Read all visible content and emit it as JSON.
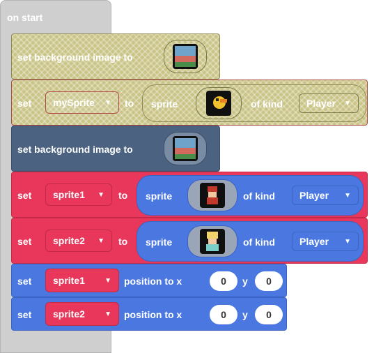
{
  "hat": {
    "label": "on start"
  },
  "block1": {
    "prefix": "set background image to"
  },
  "block2": {
    "set": "set",
    "variable": "mySprite",
    "to": "to",
    "sprite": "sprite",
    "of_kind": "of kind",
    "kind": "Player"
  },
  "block3": {
    "prefix": "set background image to"
  },
  "block4": {
    "set": "set",
    "variable": "sprite1",
    "to": "to",
    "sprite": "sprite",
    "of_kind": "of kind",
    "kind": "Player"
  },
  "block5": {
    "set": "set",
    "variable": "sprite2",
    "to": "to",
    "sprite": "sprite",
    "of_kind": "of kind",
    "kind": "Player"
  },
  "block6": {
    "set": "set",
    "variable": "sprite1",
    "position_to": "position to x",
    "x": "0",
    "y_label": "y",
    "y": "0"
  },
  "block7": {
    "set": "set",
    "variable": "sprite2",
    "position_to": "position to x",
    "x": "0",
    "y_label": "y",
    "y": "0"
  },
  "colors": {
    "hat": "#cfcfcf",
    "disabled": "#c9c486",
    "scene": "#4b6380",
    "variables": "#e8375b",
    "sprites": "#4a78e0"
  },
  "icons": {
    "background": "background-image-thumbnail-icon",
    "duck": "duck-sprite-icon",
    "red_hero": "red-hero-sprite-icon",
    "princess": "princess-sprite-icon",
    "caret": "dropdown-caret-icon"
  }
}
